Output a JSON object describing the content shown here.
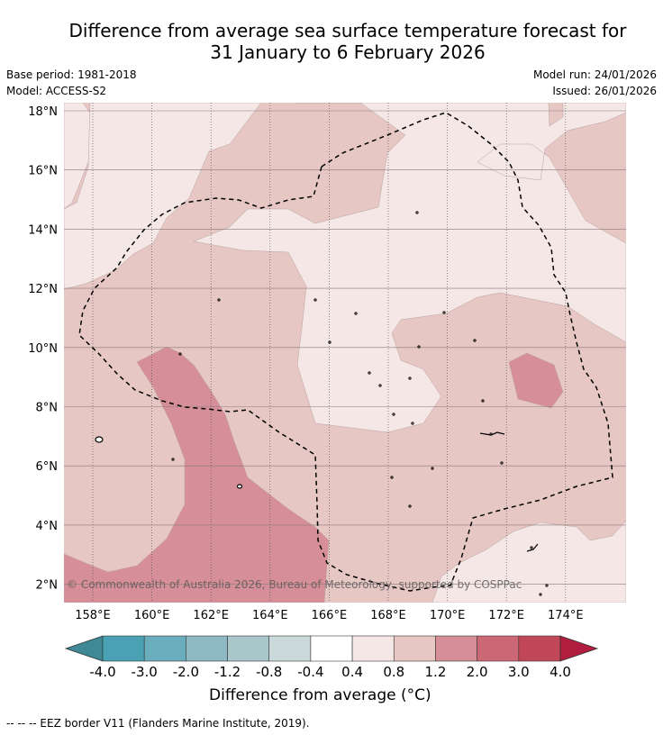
{
  "header": {
    "title_line1": "Difference from average sea surface temperature forecast for",
    "title_line2": "31 January to 6 February 2026",
    "base_period": "Base period: 1981-2018",
    "model": "Model: ACCESS-S2",
    "model_run": "Model run: 24/01/2026",
    "issued": "Issued: 26/01/2026"
  },
  "map": {
    "lat_labels": [
      "18°N",
      "16°N",
      "14°N",
      "12°N",
      "10°N",
      "8°N",
      "6°N",
      "4°N",
      "2°N"
    ],
    "lon_labels": [
      "158°E",
      "160°E",
      "162°E",
      "164°E",
      "166°E",
      "168°E",
      "170°E",
      "172°E",
      "174°E"
    ],
    "copyright": "© Commonwealth of Australia 2026, Bureau of Meteorology, supported by COSPPac",
    "colors": {
      "c_04_08": "#f4e7e6",
      "c_08_12": "#e6c7c4",
      "c_12_20": "#d68f98",
      "c_20_30": "#cc6875"
    }
  },
  "colorbar": {
    "ticks": [
      "-4.0",
      "-3.0",
      "-2.0",
      "-1.2",
      "-0.8",
      "-0.4",
      "0.4",
      "0.8",
      "1.2",
      "2.0",
      "3.0",
      "4.0"
    ],
    "colors": [
      "#3f8895",
      "#4aa1b3",
      "#6aaebd",
      "#8db9c4",
      "#a9c6ca",
      "#cbd9da",
      "#ffffff",
      "#f4e7e6",
      "#e6c7c4",
      "#d68f98",
      "#cc6875",
      "#c14757",
      "#b21e3f"
    ],
    "label": "Difference from average (°C)"
  },
  "footer": {
    "legend": "-- -- -- EEZ border V11 (Flanders Marine Institute, 2019)."
  }
}
